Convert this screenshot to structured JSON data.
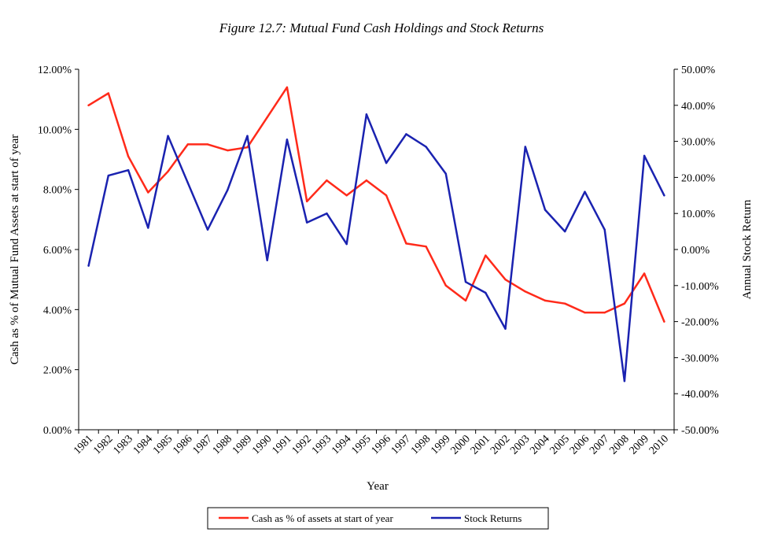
{
  "chart_data": {
    "type": "line",
    "title": "Figure 12.7: Mutual Fund Cash Holdings and Stock Returns",
    "xlabel": "Year",
    "ylabel_left": "Cash as % of Mutual Fund Assets at start of year",
    "ylabel_right": "Annual Stock Return",
    "categories": [
      "1981",
      "1982",
      "1983",
      "1984",
      "1985",
      "1986",
      "1987",
      "1988",
      "1989",
      "1990",
      "1991",
      "1992",
      "1993",
      "1994",
      "1995",
      "1996",
      "1997",
      "1998",
      "1999",
      "2000",
      "2001",
      "2002",
      "2003",
      "2004",
      "2005",
      "2006",
      "2007",
      "2008",
      "2009",
      "2010"
    ],
    "ylim_left": [
      0,
      12
    ],
    "ylim_right": [
      -50,
      50
    ],
    "yticks_left": [
      "0.00%",
      "2.00%",
      "4.00%",
      "6.00%",
      "8.00%",
      "10.00%",
      "12.00%"
    ],
    "yticks_right": [
      "-50.00%",
      "-40.00%",
      "-30.00%",
      "-20.00%",
      "-10.00%",
      "0.00%",
      "10.00%",
      "20.00%",
      "30.00%",
      "40.00%",
      "50.00%"
    ],
    "grid": false,
    "legend_position": "bottom",
    "series": [
      {
        "name": "Cash as % of assets at start of year",
        "axis": "left",
        "color": "#ff2a1a",
        "values": [
          10.8,
          11.2,
          9.1,
          7.9,
          8.6,
          9.5,
          9.5,
          9.3,
          9.4,
          10.4,
          11.4,
          7.6,
          8.3,
          7.8,
          8.3,
          7.8,
          6.2,
          6.1,
          4.8,
          4.3,
          5.8,
          5.0,
          4.6,
          4.3,
          4.2,
          3.9,
          3.9,
          4.2,
          5.2,
          3.6
        ]
      },
      {
        "name": "Stock Returns",
        "axis": "right",
        "color": "#1a22b0",
        "values": [
          -4.5,
          20.5,
          22.0,
          6.0,
          31.5,
          18.5,
          5.5,
          16.5,
          31.5,
          -3.0,
          30.5,
          7.5,
          10.0,
          1.5,
          37.5,
          24.0,
          32.0,
          28.5,
          21.0,
          -9.0,
          -12.0,
          -22.0,
          28.5,
          11.0,
          5.0,
          16.0,
          5.5,
          -36.5,
          26.0,
          15.0
        ]
      }
    ]
  }
}
